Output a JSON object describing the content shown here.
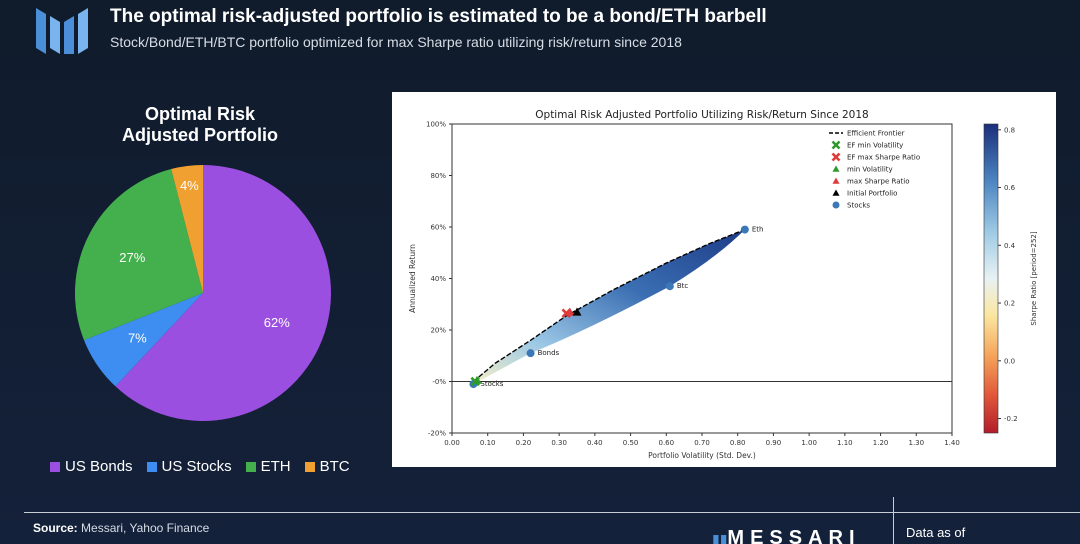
{
  "header": {
    "title": "The optimal risk-adjusted portfolio is estimated to be a bond/ETH barbell",
    "subtitle": "Stock/Bond/ETH/BTC portfolio optimized for max Sharpe ratio utilizing risk/return since 2018"
  },
  "colors": {
    "us_bonds": "#9b4fe0",
    "us_stocks": "#3d8ef0",
    "eth": "#44b04d",
    "btc": "#f0a030",
    "accent_logo": "#4a8fd8"
  },
  "chart_data": [
    {
      "type": "pie",
      "title_line1": "Optimal Risk",
      "title_line2": "Adjusted Portfolio",
      "slices": [
        {
          "name": "US Bonds",
          "value": 62,
          "label": "62%"
        },
        {
          "name": "US Stocks",
          "value": 7,
          "label": "7%"
        },
        {
          "name": "ETH",
          "value": 27,
          "label": "27%"
        },
        {
          "name": "BTC",
          "value": 4,
          "label": "4%"
        }
      ]
    },
    {
      "type": "scatter",
      "title": "Optimal Risk Adjusted Portfolio Utilizing Risk/Return Since 2018",
      "xlabel": "Portfolio Volatility (Std. Dev.)",
      "ylabel": "Annualized Return",
      "xlim": [
        0.0,
        1.4
      ],
      "ylim": [
        -0.2,
        1.0
      ],
      "x_ticks": [
        "0.00",
        "0.10",
        "0.20",
        "0.30",
        "0.40",
        "0.50",
        "0.60",
        "0.70",
        "0.80",
        "0.90",
        "1.00",
        "1.10",
        "1.20",
        "1.30",
        "1.40"
      ],
      "y_ticks": [
        "-20%",
        "-0%",
        "20%",
        "40%",
        "60%",
        "80%",
        "100%"
      ],
      "assets": [
        {
          "name": "Eth",
          "x": 0.82,
          "y": 0.59
        },
        {
          "name": "Btc",
          "x": 0.61,
          "y": 0.37
        },
        {
          "name": "Bonds",
          "x": 0.22,
          "y": 0.11
        },
        {
          "name": "Stocks",
          "x": 0.06,
          "y": -0.01
        }
      ],
      "frontier": [
        {
          "x": 0.06,
          "y": 0.0
        },
        {
          "x": 0.12,
          "y": 0.07
        },
        {
          "x": 0.22,
          "y": 0.16
        },
        {
          "x": 0.32,
          "y": 0.255
        },
        {
          "x": 0.45,
          "y": 0.355
        },
        {
          "x": 0.6,
          "y": 0.46
        },
        {
          "x": 0.72,
          "y": 0.535
        },
        {
          "x": 0.82,
          "y": 0.59
        }
      ],
      "special_points": [
        {
          "name": "EF max Sharpe Ratio",
          "x": 0.32,
          "y": 0.265,
          "shape": "x",
          "color": "#e03a3a"
        },
        {
          "name": "max Sharpe Ratio",
          "x": 0.33,
          "y": 0.27,
          "shape": "triangle",
          "color": "#e03a3a"
        },
        {
          "name": "Initial Portfolio",
          "x": 0.35,
          "y": 0.27,
          "shape": "triangle",
          "color": "#000000"
        },
        {
          "name": "EF min Volatility",
          "x": 0.065,
          "y": 0.0,
          "shape": "x",
          "color": "#2e9a2e"
        },
        {
          "name": "min Volatility",
          "x": 0.07,
          "y": 0.005,
          "shape": "triangle",
          "color": "#2e9a2e"
        }
      ],
      "legend": [
        {
          "name": "Efficient Frontier",
          "shape": "dash",
          "color": "#000000"
        },
        {
          "name": "EF min Volatility",
          "shape": "x",
          "color": "#2e9a2e"
        },
        {
          "name": "EF max Sharpe Ratio",
          "shape": "x",
          "color": "#e03a3a"
        },
        {
          "name": "min Volatility",
          "shape": "triangle",
          "color": "#2e9a2e"
        },
        {
          "name": "max Sharpe Ratio",
          "shape": "triangle",
          "color": "#e03a3a"
        },
        {
          "name": "Initial Portfolio",
          "shape": "triangle",
          "color": "#000000"
        },
        {
          "name": "Stocks",
          "shape": "circle",
          "color": "#3a78b8"
        }
      ],
      "legend_position": "top-right",
      "colorbar": {
        "label": "Sharpe Ratio [period=252]",
        "ticks": [
          "0.8",
          "0.6",
          "0.4",
          "0.2",
          "0.0",
          "-0.2"
        ],
        "range": [
          -0.25,
          0.82
        ]
      }
    }
  ],
  "footer": {
    "source_label": "Source:",
    "source_text": " Messari, Yahoo Finance",
    "brand": "MESSARI",
    "data_asof": "Data as of"
  }
}
